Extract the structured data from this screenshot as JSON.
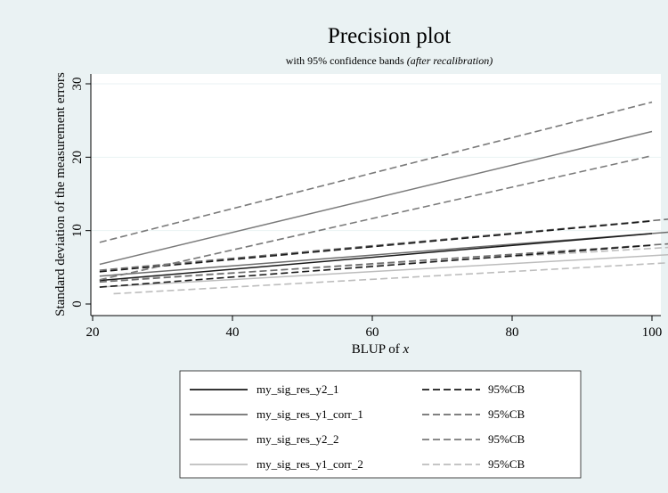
{
  "chart_data": {
    "type": "line",
    "title": "Precision plot",
    "subtitle_prefix": "with 95% confidence bands ",
    "subtitle_italic": "(after recalibration)",
    "xlabel_prefix": "BLUP of ",
    "xlabel_italic": "x",
    "ylabel": "Standard deviation of the measurement errors",
    "xlim": [
      20,
      105
    ],
    "ylim": [
      0,
      31
    ],
    "xticks": [
      20,
      40,
      60,
      80,
      100
    ],
    "yticks": [
      0,
      10,
      20,
      30
    ],
    "grid": "horizontal",
    "legend_position": "bottom",
    "band_label": "95%CB",
    "series": [
      {
        "name": "my_sig_res_y2_1",
        "color": "#1a1a1a",
        "x": [
          21,
          100
        ],
        "y": [
          3.2,
          9.6
        ],
        "band_lower": {
          "x": [
            21,
            100
          ],
          "y": [
            2.3,
            8.0
          ]
        },
        "band_upper": {
          "x": [
            21,
            100
          ],
          "y": [
            4.4,
            11.3
          ]
        }
      },
      {
        "name": "my_sig_res_y1_corr_1",
        "color": "#6e6e6e",
        "x": [
          21,
          104
        ],
        "y": [
          3.8,
          9.9
        ],
        "band_lower": {
          "x": [
            21,
            104
          ],
          "y": [
            3.0,
            8.3
          ]
        },
        "band_upper": {
          "x": [
            21,
            104
          ],
          "y": [
            4.6,
            11.7
          ]
        }
      },
      {
        "name": "my_sig_res_y2_2",
        "color": "#7a7a7a",
        "x": [
          21,
          100
        ],
        "y": [
          5.4,
          23.5
        ],
        "band_lower": {
          "x": [
            21,
            100
          ],
          "y": [
            3.3,
            20.2
          ]
        },
        "band_upper": {
          "x": [
            21,
            100
          ],
          "y": [
            8.4,
            27.5
          ]
        }
      },
      {
        "name": "my_sig_res_y1_corr_2",
        "color": "#bdbdbd",
        "x": [
          21,
          104
        ],
        "y": [
          2.3,
          6.8
        ],
        "band_lower": {
          "x": [
            23,
            104
          ],
          "y": [
            1.4,
            5.7
          ]
        },
        "band_upper": {
          "x": [
            21,
            104
          ],
          "y": [
            3.2,
            7.8
          ]
        }
      }
    ]
  }
}
